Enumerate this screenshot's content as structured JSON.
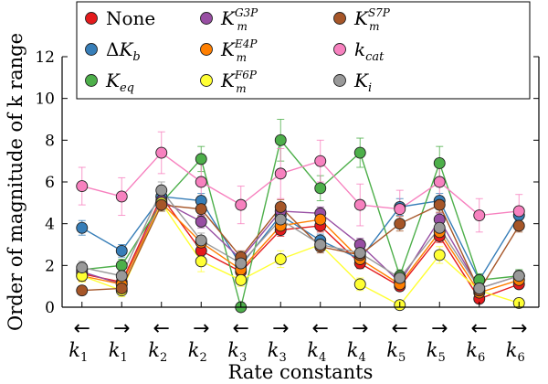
{
  "chart_data": {
    "type": "line",
    "ylabel": "Order of magnitude of k range",
    "xlabel": "Rate constants",
    "ylim": [
      0,
      12
    ],
    "yticks": [
      0,
      2,
      4,
      6,
      8,
      10,
      12
    ],
    "categories": [
      {
        "direction": "back",
        "base": "k",
        "sub": "1"
      },
      {
        "direction": "fwd",
        "base": "k",
        "sub": "1"
      },
      {
        "direction": "back",
        "base": "k",
        "sub": "2"
      },
      {
        "direction": "fwd",
        "base": "k",
        "sub": "2"
      },
      {
        "direction": "back",
        "base": "k",
        "sub": "3"
      },
      {
        "direction": "fwd",
        "base": "k",
        "sub": "3"
      },
      {
        "direction": "back",
        "base": "k",
        "sub": "4"
      },
      {
        "direction": "fwd",
        "base": "k",
        "sub": "4"
      },
      {
        "direction": "back",
        "base": "k",
        "sub": "5"
      },
      {
        "direction": "fwd",
        "base": "k",
        "sub": "5"
      },
      {
        "direction": "back",
        "base": "k",
        "sub": "6"
      },
      {
        "direction": "fwd",
        "base": "k",
        "sub": "6"
      }
    ],
    "arrows": {
      "back": "←",
      "fwd": "→"
    },
    "legend_placement": "top",
    "series": [
      {
        "name": "None",
        "label": {
          "main": "None",
          "sup": "",
          "sub": ""
        },
        "color": "#e41a1c",
        "values": [
          1.6,
          1.2,
          5.3,
          2.7,
          1.7,
          3.7,
          3.9,
          2.1,
          1.0,
          3.4,
          0.4,
          1.1
        ],
        "err": [
          0.25,
          0.3,
          0.3,
          0.3,
          0.25,
          0.3,
          0.3,
          0.25,
          0.2,
          0.3,
          0.2,
          0.2
        ]
      },
      {
        "name": "ΔKb",
        "label": {
          "main": "ΔK",
          "sup": "",
          "sub": "b"
        },
        "color": "#377eb8",
        "values": [
          3.8,
          2.7,
          5.3,
          5.1,
          2.0,
          4.4,
          3.2,
          2.3,
          4.8,
          5.1,
          1.3,
          4.4
        ],
        "err": [
          0.35,
          0.3,
          0.3,
          0.35,
          0.3,
          0.35,
          0.3,
          0.3,
          0.4,
          0.35,
          0.3,
          0.35
        ]
      },
      {
        "name": "Keq",
        "label": {
          "main": "K",
          "sup": "",
          "sub": "eq"
        },
        "color": "#4daf4a",
        "values": [
          1.8,
          2.0,
          5.0,
          7.1,
          0.0,
          8.0,
          5.7,
          7.4,
          1.5,
          6.9,
          1.3,
          1.5
        ],
        "err": [
          0.3,
          0.3,
          0.4,
          0.6,
          0.2,
          1.0,
          0.6,
          0.7,
          0.3,
          0.8,
          0.3,
          0.3
        ]
      },
      {
        "name": "Km G3P",
        "label": {
          "main": "K",
          "sup": "G3P",
          "sub": "m"
        },
        "color": "#984ea3",
        "values": [
          1.7,
          1.1,
          5.1,
          4.1,
          2.3,
          4.6,
          4.5,
          3.0,
          1.2,
          4.2,
          0.9,
          1.5
        ],
        "err": [
          0.3,
          0.3,
          0.3,
          0.3,
          0.3,
          0.3,
          0.3,
          0.3,
          0.2,
          0.3,
          0.2,
          0.2
        ]
      },
      {
        "name": "Km E4P",
        "label": {
          "main": "K",
          "sup": "E4P",
          "sub": "m"
        },
        "color": "#ff7f00",
        "values": [
          1.5,
          1.1,
          5.0,
          3.1,
          1.8,
          3.9,
          4.2,
          2.3,
          1.1,
          3.6,
          0.7,
          1.3
        ],
        "err": [
          0.25,
          0.25,
          0.3,
          0.3,
          0.25,
          0.3,
          0.3,
          0.25,
          0.2,
          0.3,
          0.2,
          0.2
        ]
      },
      {
        "name": "Km F6P",
        "label": {
          "main": "K",
          "sup": "F6P",
          "sub": "m"
        },
        "color": "#ffff33",
        "values": [
          1.5,
          0.8,
          5.0,
          2.2,
          1.3,
          2.3,
          3.0,
          1.1,
          0.1,
          2.5,
          0.8,
          0.2
        ],
        "err": [
          0.3,
          0.3,
          0.3,
          0.5,
          0.3,
          0.4,
          0.3,
          0.3,
          0.2,
          0.4,
          0.2,
          0.2
        ]
      },
      {
        "name": "Km S7P",
        "label": {
          "main": "K",
          "sup": "S7P",
          "sub": "m"
        },
        "color": "#a65628",
        "values": [
          0.8,
          0.9,
          4.9,
          4.7,
          2.4,
          4.8,
          2.9,
          2.5,
          4.0,
          4.9,
          0.8,
          3.9
        ],
        "err": [
          0.2,
          0.25,
          0.3,
          0.35,
          0.3,
          0.35,
          0.3,
          0.3,
          0.35,
          0.35,
          0.2,
          0.3
        ]
      },
      {
        "name": "kcat",
        "label": {
          "main": "k",
          "sup": "",
          "sub": "cat"
        },
        "color": "#f781bf",
        "values": [
          5.8,
          5.3,
          7.4,
          6.0,
          4.9,
          6.4,
          7.0,
          4.9,
          4.7,
          6.0,
          4.4,
          4.6
        ],
        "err": [
          0.9,
          0.9,
          1.0,
          1.1,
          0.9,
          1.2,
          1.0,
          1.0,
          0.9,
          1.1,
          0.8,
          0.8
        ]
      },
      {
        "name": "Ki",
        "label": {
          "main": "K",
          "sup": "",
          "sub": "i"
        },
        "color": "#999999",
        "values": [
          1.9,
          1.5,
          5.6,
          3.2,
          2.1,
          4.2,
          3.0,
          2.6,
          1.4,
          3.8,
          0.9,
          1.5
        ],
        "err": [
          0.3,
          0.3,
          0.4,
          0.35,
          0.3,
          0.35,
          0.3,
          0.3,
          0.25,
          0.35,
          0.25,
          0.25
        ]
      }
    ]
  }
}
